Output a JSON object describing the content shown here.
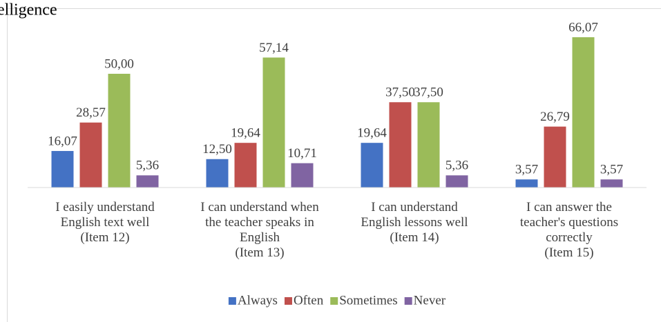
{
  "chart_data": {
    "type": "bar",
    "title": "elligence",
    "categories": [
      "I easily understand\nEnglish text well\n(Item 12)",
      "I can understand when\nthe teacher speaks in\nEnglish\n(Item 13)",
      "I can understand\nEnglish lessons well\n(Item 14)",
      "I can answer the\nteacher's questions\ncorrectly\n(Item 15)"
    ],
    "series": [
      {
        "name": "Always",
        "color": "#4472c4",
        "values": [
          16.07,
          12.5,
          19.64,
          3.57
        ],
        "value_labels": [
          "16,07",
          "12,50",
          "19,64",
          "3,57"
        ]
      },
      {
        "name": "Often",
        "color": "#c0504d",
        "values": [
          28.57,
          19.64,
          37.5,
          26.79
        ],
        "value_labels": [
          "28,57",
          "19,64",
          "37,50",
          "26,79"
        ]
      },
      {
        "name": "Sometimes",
        "color": "#9bbb59",
        "values": [
          50.0,
          57.14,
          37.5,
          66.07
        ],
        "value_labels": [
          "50,00",
          "57,14",
          "37,50",
          "66,07"
        ]
      },
      {
        "name": "Never",
        "color": "#8064a2",
        "values": [
          5.36,
          10.71,
          5.36,
          3.57
        ],
        "value_labels": [
          "5,36",
          "10,71",
          "5,36",
          "3,57"
        ]
      }
    ],
    "ylim": [
      0,
      70
    ],
    "legend": "bottom"
  }
}
